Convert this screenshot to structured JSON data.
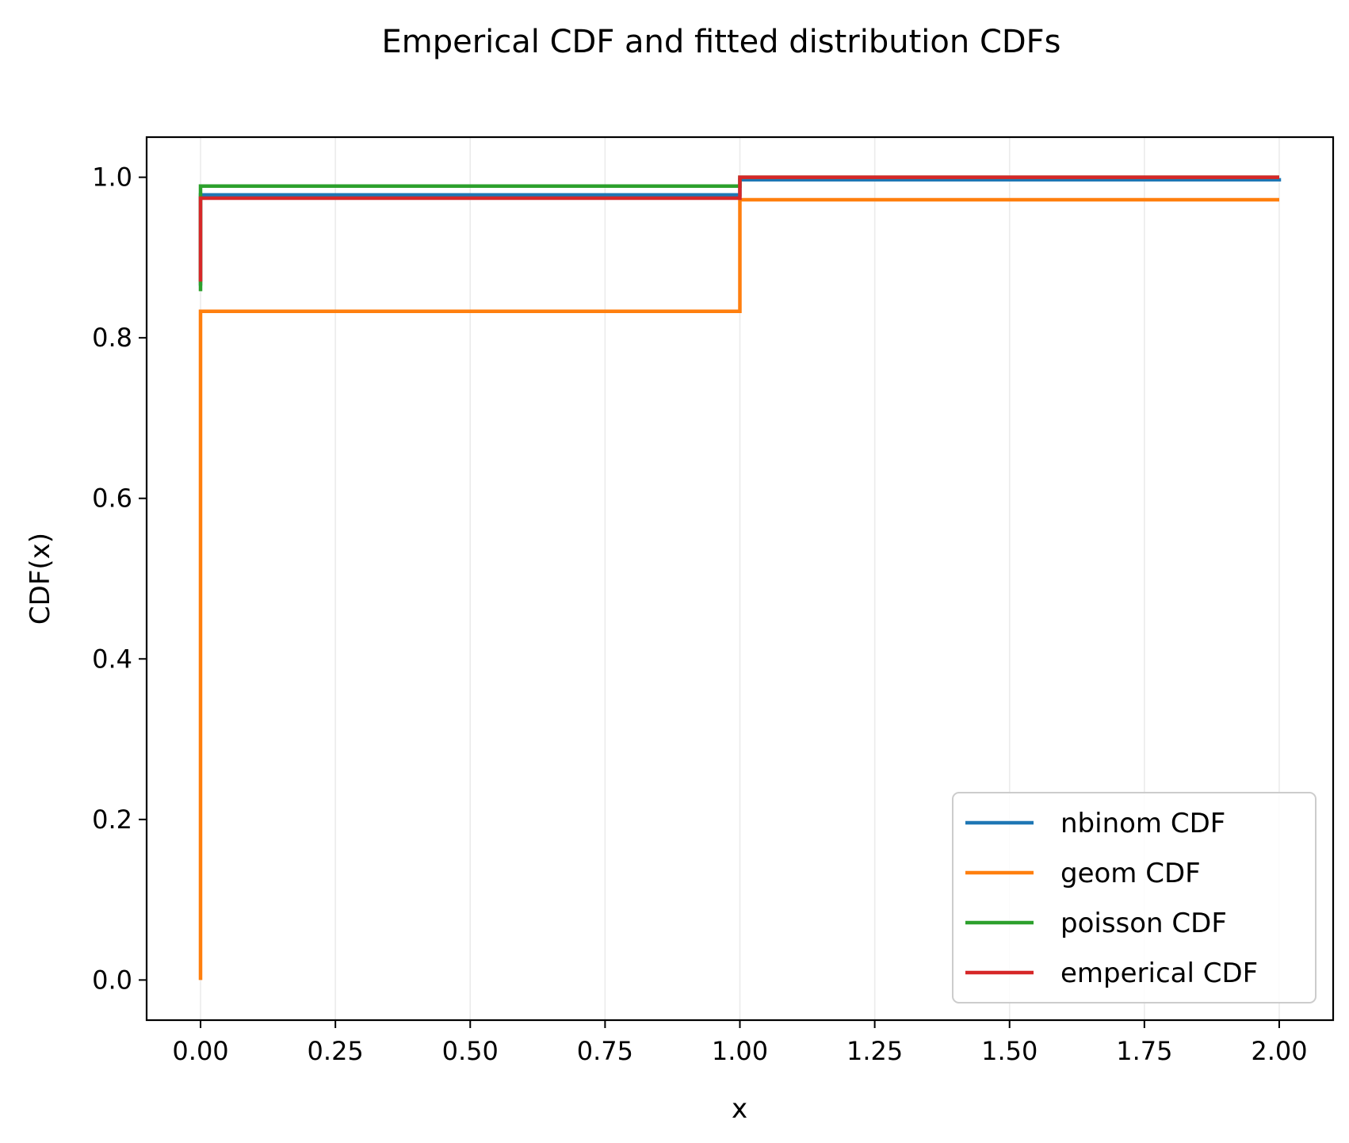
{
  "chart_data": {
    "type": "line",
    "step": "post",
    "title": "Emperical CDF and fitted distribution CDFs",
    "xlabel": "x",
    "ylabel": "CDF(x)",
    "xlim": [
      -0.1,
      2.1
    ],
    "ylim": [
      -0.05,
      1.05
    ],
    "x_ticks": [
      0.0,
      0.25,
      0.5,
      0.75,
      1.0,
      1.25,
      1.5,
      1.75,
      2.0
    ],
    "x_tick_labels": [
      "0.00",
      "0.25",
      "0.50",
      "0.75",
      "1.00",
      "1.25",
      "1.50",
      "1.75",
      "2.00"
    ],
    "y_ticks": [
      0.0,
      0.2,
      0.4,
      0.6,
      0.8,
      1.0
    ],
    "y_tick_labels": [
      "0.0",
      "0.2",
      "0.4",
      "0.6",
      "0.8",
      "1.0"
    ],
    "grid": "vertical",
    "legend_position": "lower-right",
    "series": [
      {
        "name": "nbinom CDF",
        "color": "#1f77b4",
        "x": [
          0,
          0,
          1,
          2
        ],
        "y": [
          0.865,
          0.978,
          0.997,
          0.999
        ]
      },
      {
        "name": "geom CDF",
        "color": "#ff7f0e",
        "x": [
          0,
          0,
          1,
          2
        ],
        "y": [
          0.0,
          0.833,
          0.972,
          0.972
        ]
      },
      {
        "name": "poisson CDF",
        "color": "#2ca02c",
        "x": [
          0,
          0,
          1,
          2
        ],
        "y": [
          0.858,
          0.989,
          1.0,
          1.0
        ]
      },
      {
        "name": "emperical CDF",
        "color": "#d62728",
        "x": [
          0,
          0,
          1,
          2
        ],
        "y": [
          0.87,
          0.974,
          1.0,
          1.0
        ]
      }
    ]
  }
}
